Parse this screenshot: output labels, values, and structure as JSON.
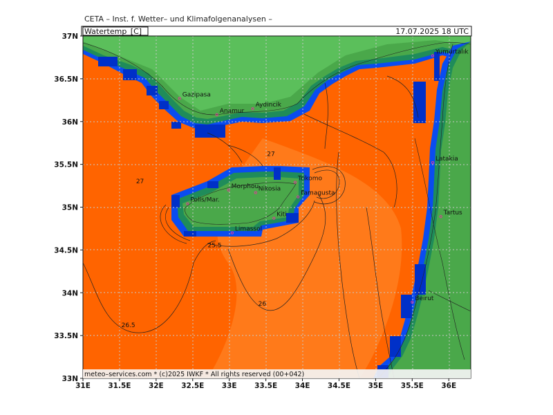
{
  "header": {
    "title": "CETA – Inst. f. Wetter– und Klimafolgenanalysen –",
    "datetime": "17.07.2025 18 UTC",
    "field_label": "Watertemp_[C]"
  },
  "footer": {
    "credit": "meteo–services.com * (c)2025 IWKF * All rights reserved (00+042)"
  },
  "axes": {
    "x_ticks": [
      "31E",
      "31.5E",
      "32E",
      "32.5E",
      "33E",
      "33.5E",
      "34E",
      "34.5E",
      "35E",
      "35.5E",
      "36E"
    ],
    "y_ticks": [
      "37N",
      "36.5N",
      "36N",
      "35.5N",
      "35N",
      "34.5N",
      "34N",
      "33.5N",
      "33N"
    ]
  },
  "places": [
    {
      "name": "Yumurtalık",
      "lon": 35.78,
      "lat": 36.77
    },
    {
      "name": "Gazipasa",
      "lon": 32.32,
      "lat": 36.27
    },
    {
      "name": "Anamur",
      "lon": 32.83,
      "lat": 36.08
    },
    {
      "name": "Aydincik",
      "lon": 33.32,
      "lat": 36.15
    },
    {
      "name": "Latakia",
      "lon": 35.78,
      "lat": 35.52
    },
    {
      "name": "Trikomo",
      "lon": 33.9,
      "lat": 35.29
    },
    {
      "name": "Morphou",
      "lon": 32.99,
      "lat": 35.2
    },
    {
      "name": "Nikosia",
      "lon": 33.36,
      "lat": 35.17
    },
    {
      "name": "Famagusta",
      "lon": 33.94,
      "lat": 35.12
    },
    {
      "name": "Polis/Mar.",
      "lon": 32.43,
      "lat": 35.04
    },
    {
      "name": "Kiti",
      "lon": 33.61,
      "lat": 34.87
    },
    {
      "name": "Limassol",
      "lon": 33.04,
      "lat": 34.7
    },
    {
      "name": "Tartus",
      "lon": 35.89,
      "lat": 34.89
    },
    {
      "name": "Beirut",
      "lon": 35.5,
      "lat": 33.89
    }
  ],
  "contour_labels": [
    {
      "text": "27",
      "lon": 31.78,
      "lat": 35.28
    },
    {
      "text": "27",
      "lon": 33.57,
      "lat": 35.6
    },
    {
      "text": "25.5",
      "lon": 32.8,
      "lat": 34.53
    },
    {
      "text": "26",
      "lon": 33.45,
      "lat": 33.85
    },
    {
      "text": "26.5",
      "lon": 31.62,
      "lat": 33.6
    }
  ],
  "colors": {
    "sea_warm": "#ff6400",
    "sea_mid": "#ff7a1a",
    "land": "#4aa84a",
    "land_light": "#5bbf5b",
    "coast_dark": "#1f8c5a",
    "coast_teal": "#2a9a7a",
    "cold_blue": "#0a4cf0",
    "cold_navy": "#0030c8",
    "grid": "#c8c8c8",
    "city_marker": "#e03a9a"
  }
}
